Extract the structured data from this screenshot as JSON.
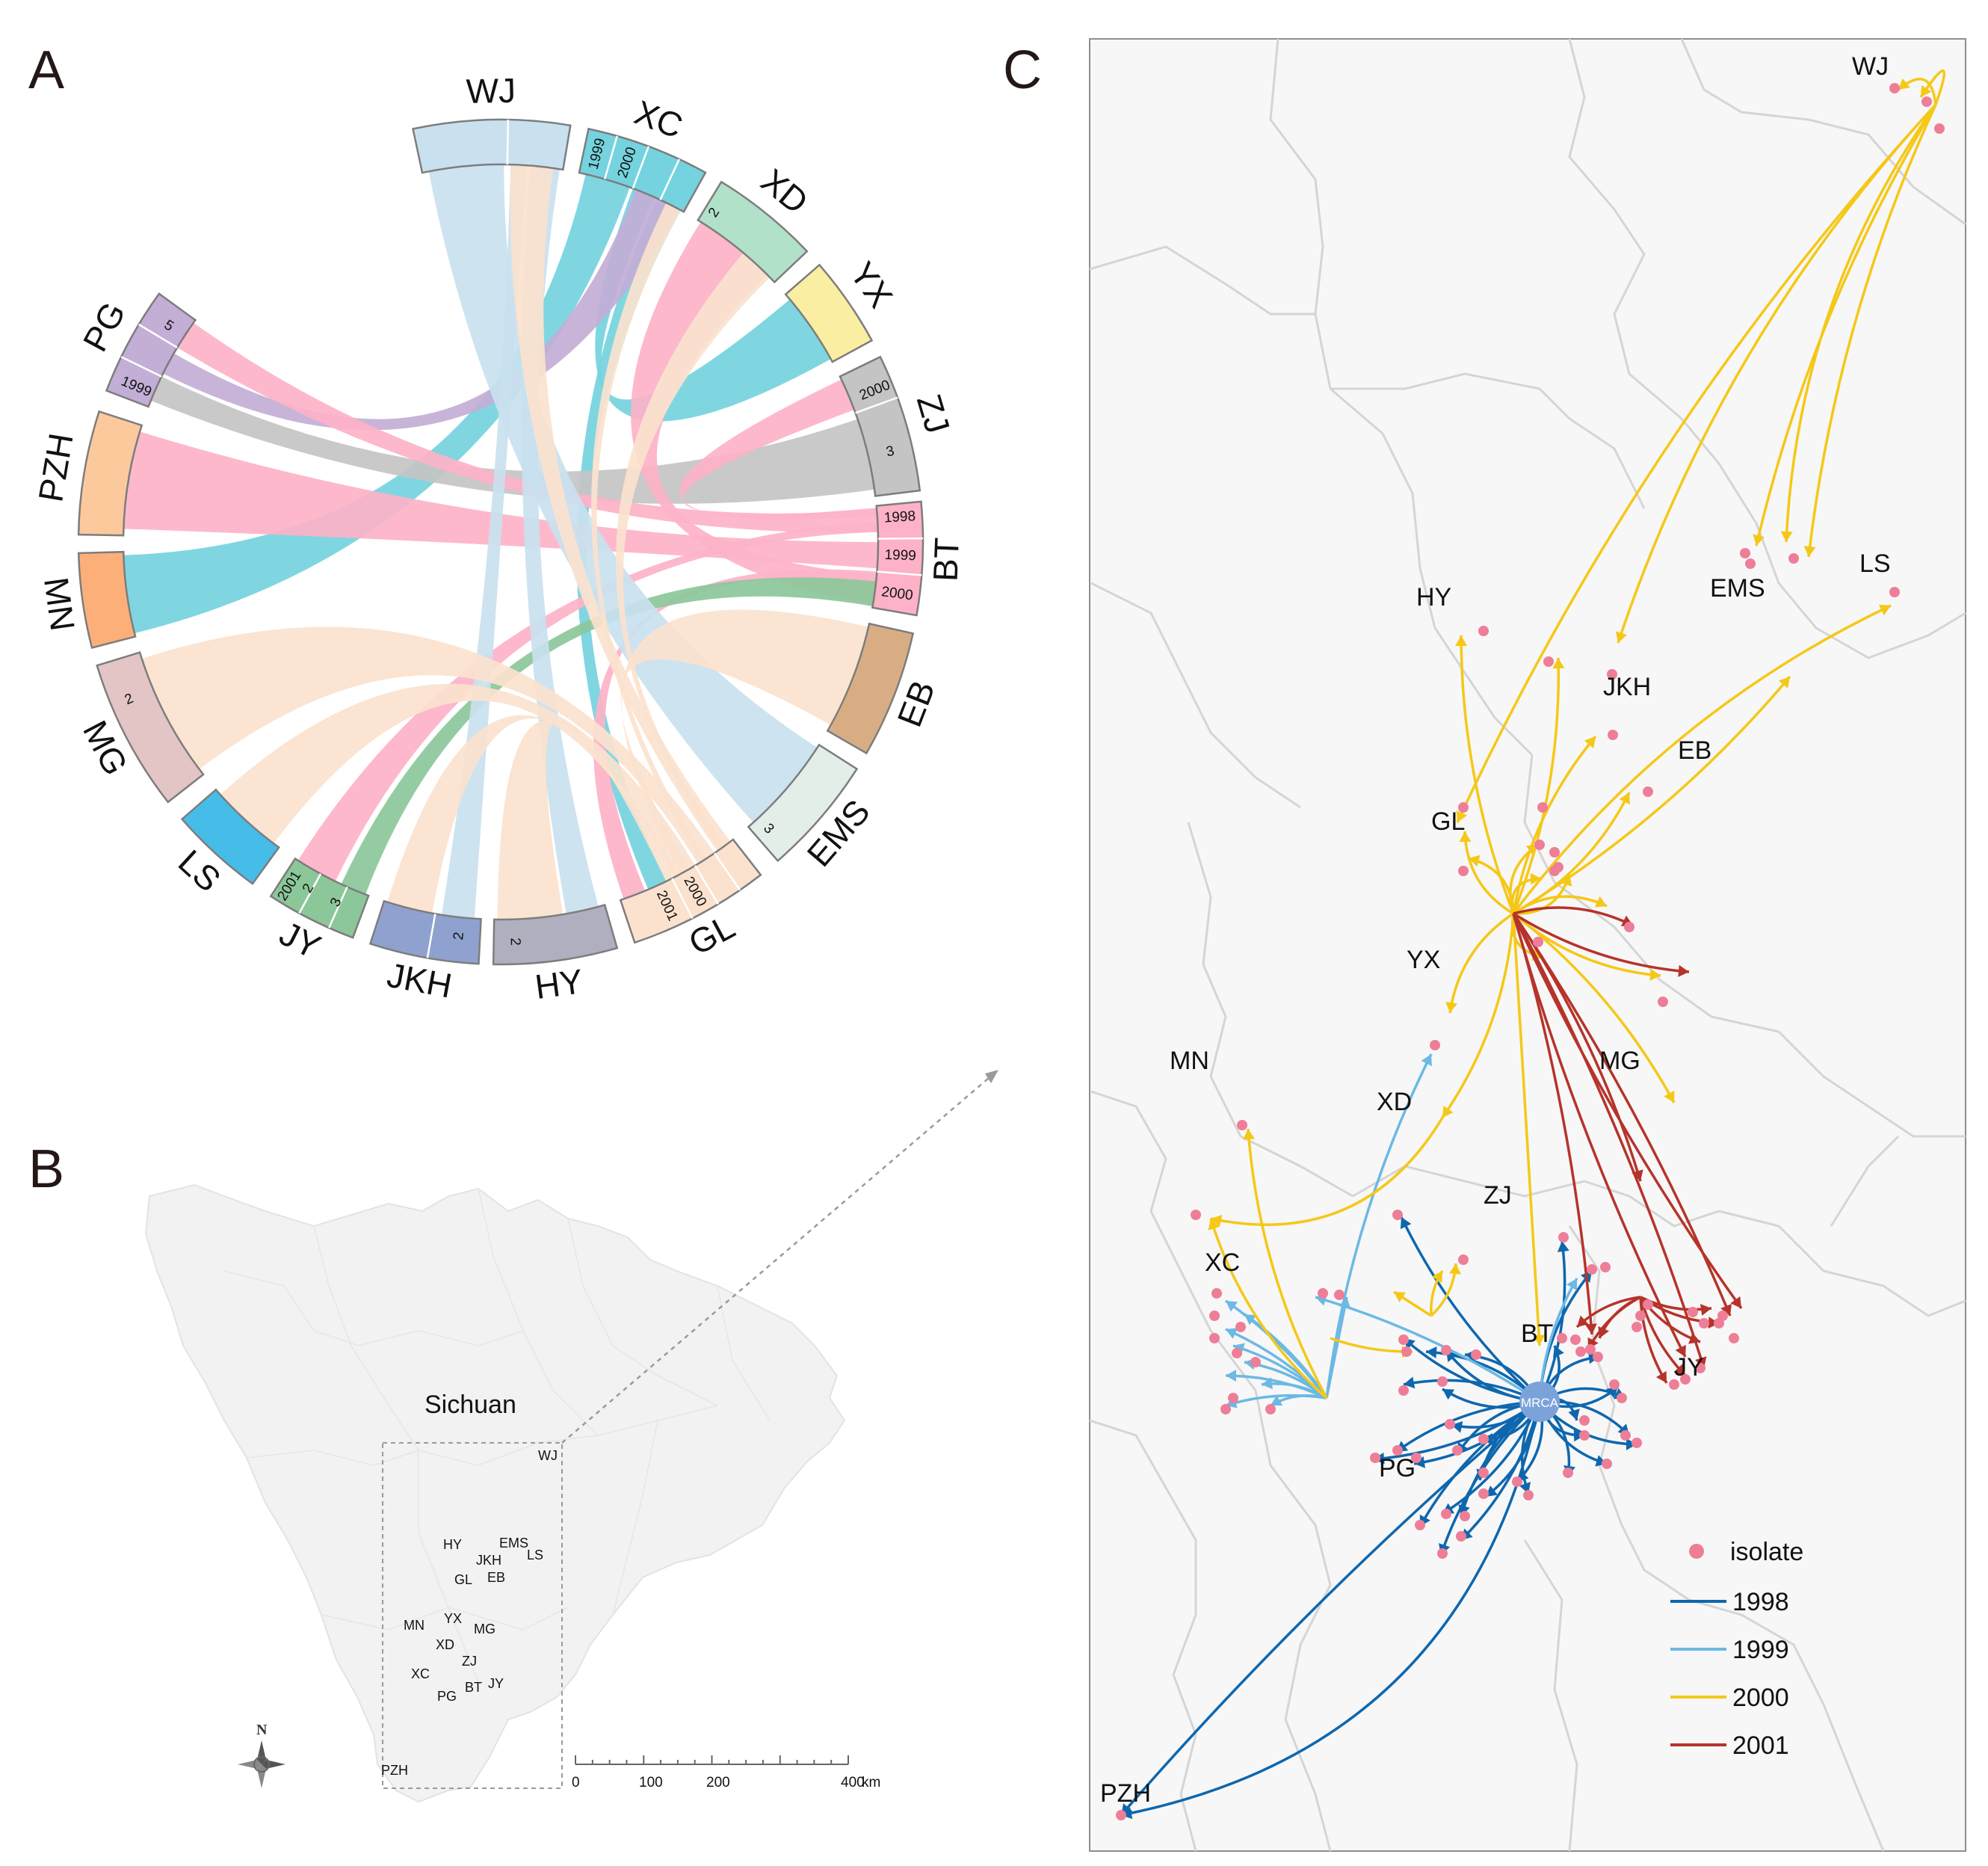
{
  "panels": {
    "a": "A",
    "b": "B",
    "c": "C"
  },
  "colors": {
    "pink": "#FDB2C8",
    "peach": "#FBE2CE",
    "lightblue": "#C9E1EF",
    "cyan": "#74D3DE",
    "gray": "#C4C4C4",
    "green": "#8CC79A",
    "lavender": "#C3AED6",
    "y1998": "#0E67AE",
    "y1999": "#6CB9E4",
    "y2000": "#F5C817",
    "y2001": "#B6332B",
    "isolate": "#EE7E97",
    "mrca": "#7CA3D9"
  },
  "chord": {
    "sectors": [
      {
        "name": "WJ",
        "color": "#C9E1EF"
      },
      {
        "name": "XC",
        "color": "#74D3DE"
      },
      {
        "name": "XD",
        "color": "#B2E1CA"
      },
      {
        "name": "YX",
        "color": "#F9EEA1"
      },
      {
        "name": "ZJ",
        "color": "#C4C4C4"
      },
      {
        "name": "BT",
        "color": "#FDB2C8"
      },
      {
        "name": "EB",
        "color": "#D9AD84"
      },
      {
        "name": "EMS",
        "color": "#E3EEE8"
      },
      {
        "name": "GL",
        "color": "#FBE2CE"
      },
      {
        "name": "HY",
        "color": "#B0AFBF"
      },
      {
        "name": "JKH",
        "color": "#8FA2CF"
      },
      {
        "name": "JY",
        "color": "#8CC79A"
      },
      {
        "name": "LS",
        "color": "#46BCE9"
      },
      {
        "name": "MG",
        "color": "#E3C5C6"
      },
      {
        "name": "MN",
        "color": "#FDAF79"
      },
      {
        "name": "PZH",
        "color": "#FCC99D"
      },
      {
        "name": "PG",
        "color": "#C3AED6"
      }
    ],
    "tick_labels": [
      {
        "text": "1998",
        "sector": "BT"
      },
      {
        "text": "1999",
        "sector": "BT"
      },
      {
        "text": "2000",
        "sector": "BT"
      },
      {
        "text": "3",
        "sector": "ZJ"
      },
      {
        "text": "2000",
        "sector": "ZJ"
      },
      {
        "text": "1999",
        "sector": "XC"
      },
      {
        "text": "2000",
        "sector": "XC"
      },
      {
        "text": "2",
        "sector": "XD"
      },
      {
        "text": "5",
        "sector": "PG"
      },
      {
        "text": "1999",
        "sector": "PG"
      },
      {
        "text": "2",
        "sector": "MG"
      },
      {
        "text": "3",
        "sector": "JY"
      },
      {
        "text": "2",
        "sector": "JY"
      },
      {
        "text": "2001",
        "sector": "JY"
      },
      {
        "text": "2",
        "sector": "JKH"
      },
      {
        "text": "2",
        "sector": "HY"
      },
      {
        "text": "2000",
        "sector": "GL"
      },
      {
        "text": "2001",
        "sector": "GL"
      },
      {
        "text": "3",
        "sector": "EMS"
      }
    ]
  },
  "overview_map": {
    "region_label": "Sichuan",
    "places": [
      "WJ",
      "HY",
      "EMS",
      "JKH",
      "LS",
      "GL",
      "EB",
      "MN",
      "YX",
      "MG",
      "XD",
      "ZJ",
      "XC",
      "PG",
      "BT",
      "JY",
      "PZH"
    ],
    "north_label": "N",
    "scale": {
      "ticks": [
        "0",
        "100",
        "200",
        "400"
      ],
      "unit": "km"
    }
  },
  "transmission_map": {
    "place_labels": [
      "WJ",
      "LS",
      "EMS",
      "HY",
      "JKH",
      "EB",
      "GL",
      "YX",
      "MN",
      "XD",
      "MG",
      "ZJ",
      "XC",
      "BT",
      "JY",
      "PG",
      "PZH"
    ],
    "root_label": "MRCA"
  },
  "legend": {
    "isolate_label": "isolate",
    "years": [
      {
        "label": "1998",
        "color": "#0E67AE"
      },
      {
        "label": "1999",
        "color": "#6CB9E4"
      },
      {
        "label": "2000",
        "color": "#F5C817"
      },
      {
        "label": "2001",
        "color": "#B6332B"
      }
    ]
  }
}
